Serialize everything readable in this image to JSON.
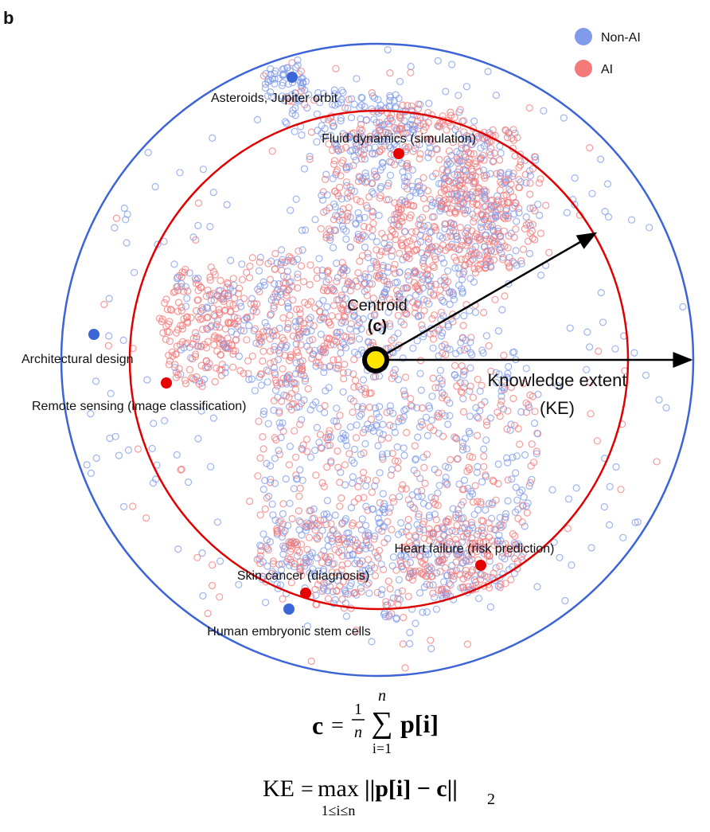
{
  "panel_label": "b",
  "legend": [
    {
      "label": "Non-AI",
      "color": "#7f9bea"
    },
    {
      "label": "AI",
      "color": "#f47a7a"
    }
  ],
  "centroid": {
    "label": "Centroid",
    "symbol": "(c)"
  },
  "knowledge_extent": {
    "label": "Knowledge extent",
    "abbr": "(KE)"
  },
  "examples": [
    {
      "label": "Asteroids, Jupiter orbit",
      "group": "Non-AI"
    },
    {
      "label": "Fluid dynamics (simulation)",
      "group": "AI"
    },
    {
      "label": "Architectural design",
      "group": "Non-AI"
    },
    {
      "label": "Remote sensing (image classification)",
      "group": "AI"
    },
    {
      "label": "Heart failure (risk prediction)",
      "group": "AI"
    },
    {
      "label": "Skin cancer (diagnosis)",
      "group": "AI"
    },
    {
      "label": "Human embryonic stem cells",
      "group": "Non-AI"
    }
  ],
  "formulas": {
    "centroid": {
      "lhs": "c",
      "eq": "=",
      "numerator": "1",
      "denominator": "n",
      "sum": "∑",
      "upper": "n",
      "lower": "i=1",
      "term": "p[i]"
    },
    "extent": {
      "lhs": "KE",
      "eq": "=",
      "op": "max",
      "range": "1≤i≤n",
      "norm": "||p[i] − c||",
      "sub": "2"
    }
  }
}
